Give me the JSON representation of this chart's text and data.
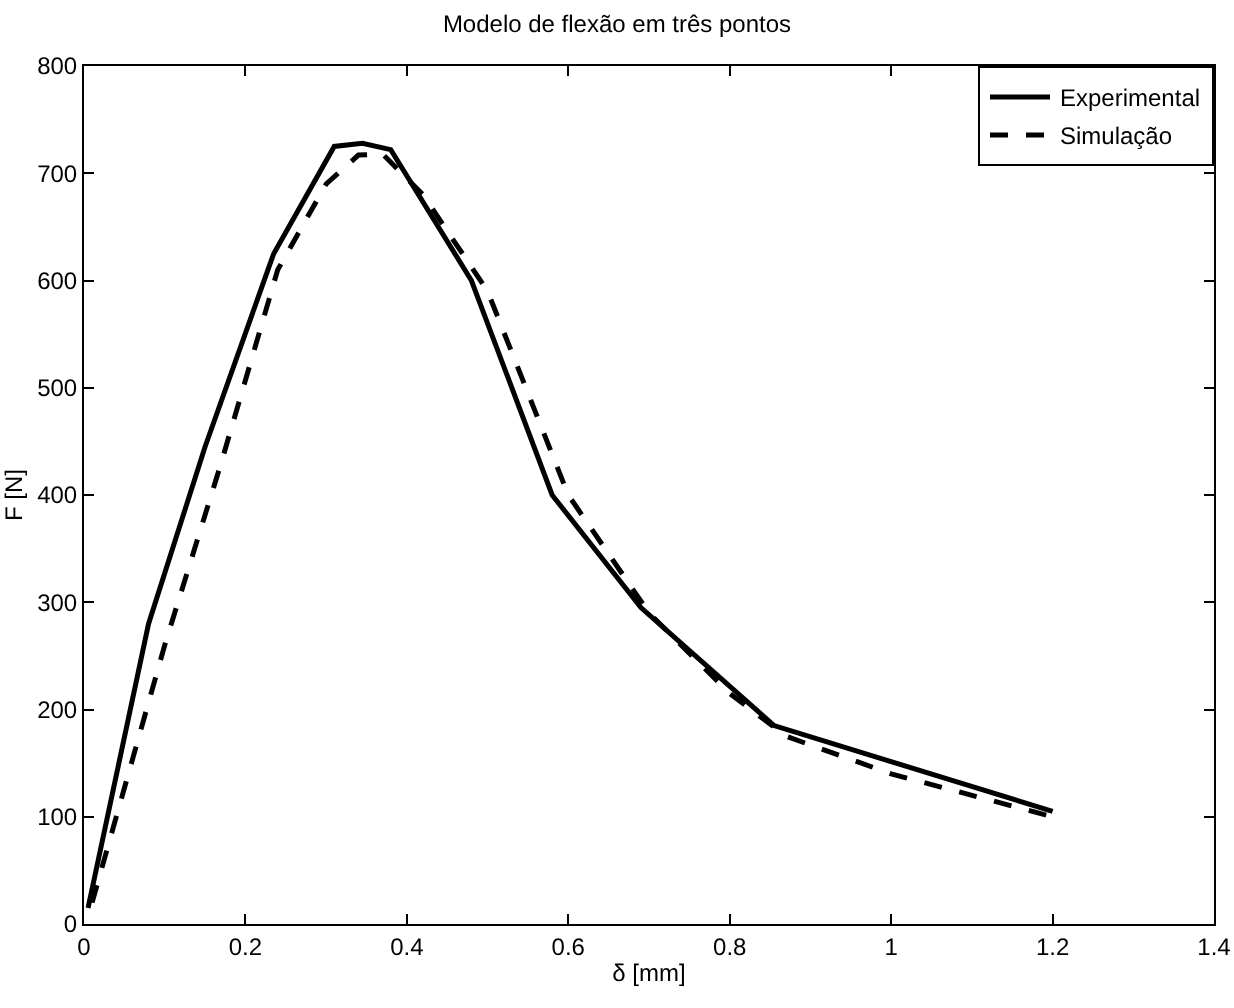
{
  "chart_data": {
    "type": "line",
    "title": "Modelo de flexão em três pontos",
    "xlabel": "δ [mm]",
    "ylabel": "F [N]",
    "xlim": [
      0,
      1.4
    ],
    "xticks": [
      0,
      0.2,
      0.4,
      0.6,
      0.8,
      1,
      1.2,
      1.4
    ],
    "ylim": [
      0,
      800
    ],
    "yticks": [
      0,
      100,
      200,
      300,
      400,
      500,
      600,
      700,
      800
    ],
    "grid": false,
    "legend": "top right",
    "marker": "none",
    "series": [
      {
        "name": "Experimental",
        "color": "#000000",
        "line_style": "solid",
        "x": [
          0.005,
          0.08,
          0.15,
          0.235,
          0.31,
          0.345,
          0.38,
          0.48,
          0.58,
          0.69,
          0.855,
          1.2
        ],
        "values": [
          15,
          280,
          445,
          625,
          725,
          728,
          722,
          600,
          400,
          295,
          185,
          105
        ]
      },
      {
        "name": "Simulação",
        "color": "#000000",
        "line_style": "dashed",
        "x": [
          0.01,
          0.1,
          0.17,
          0.24,
          0.3,
          0.34,
          0.37,
          0.42,
          0.5,
          0.6,
          0.7,
          0.8,
          0.87,
          1.0,
          1.2
        ],
        "values": [
          20,
          260,
          430,
          610,
          690,
          717,
          718,
          680,
          590,
          400,
          290,
          215,
          175,
          140,
          100
        ]
      }
    ]
  }
}
